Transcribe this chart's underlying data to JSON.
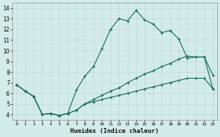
{
  "xlabel": "Humidex (Indice chaleur)",
  "bg_color": "#d4ece8",
  "grid_color": "#b8d8d4",
  "line_color": "#1a6e5e",
  "xlim": [
    -0.5,
    23.5
  ],
  "ylim": [
    3.5,
    14.5
  ],
  "xticks": [
    0,
    1,
    2,
    3,
    4,
    5,
    6,
    7,
    8,
    9,
    10,
    11,
    12,
    13,
    14,
    15,
    16,
    17,
    18,
    19,
    20,
    21,
    22,
    23
  ],
  "yticks": [
    4,
    5,
    6,
    7,
    8,
    9,
    10,
    11,
    12,
    13,
    14
  ],
  "series1_x": [
    0,
    1,
    2,
    3,
    4,
    5,
    6,
    7,
    8,
    9,
    10,
    11,
    12,
    13,
    14,
    15,
    16,
    17,
    18,
    19,
    20,
    21,
    22,
    23
  ],
  "series1_y": [
    6.8,
    6.2,
    5.7,
    4.0,
    4.1,
    3.9,
    4.1,
    6.3,
    7.6,
    8.5,
    10.2,
    12.0,
    13.0,
    12.8,
    13.8,
    12.9,
    12.5,
    11.7,
    11.9,
    11.1,
    9.3,
    9.4,
    9.4,
    7.7
  ],
  "series2_x": [
    0,
    1,
    2,
    3,
    4,
    5,
    6,
    7,
    8,
    9,
    10,
    11,
    12,
    13,
    14,
    15,
    16,
    17,
    18,
    19,
    20,
    21,
    22,
    23
  ],
  "series2_y": [
    6.8,
    6.2,
    5.7,
    4.0,
    4.1,
    3.9,
    4.1,
    4.4,
    5.0,
    5.4,
    5.8,
    6.2,
    6.5,
    7.0,
    7.4,
    7.8,
    8.1,
    8.5,
    8.8,
    9.2,
    9.5,
    9.4,
    9.4,
    6.4
  ],
  "series3_x": [
    0,
    1,
    2,
    3,
    4,
    5,
    6,
    7,
    8,
    9,
    10,
    11,
    12,
    13,
    14,
    15,
    16,
    17,
    18,
    19,
    20,
    21,
    22,
    23
  ],
  "series3_y": [
    6.8,
    6.2,
    5.7,
    4.0,
    4.1,
    3.9,
    4.1,
    4.4,
    5.0,
    5.2,
    5.4,
    5.6,
    5.8,
    6.0,
    6.2,
    6.4,
    6.6,
    6.8,
    7.0,
    7.2,
    7.4,
    7.4,
    7.4,
    6.4
  ]
}
